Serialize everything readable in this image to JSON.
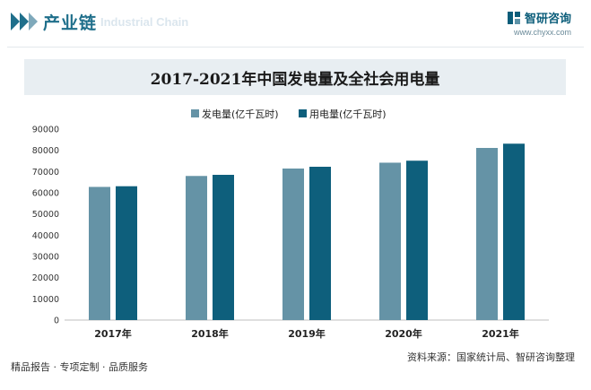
{
  "header": {
    "title": "产业链",
    "ghost_text": "Industrial Chain"
  },
  "brand": {
    "name": "智研咨询",
    "url": "www.chyxx.com"
  },
  "footer": {
    "slogan": "精品报告 · 专项定制 · 品质服务",
    "source": "资料来源：国家统计局、智研咨询整理"
  },
  "colors": {
    "series1": "#6593a6",
    "series2": "#0e5f7c",
    "accent": "#1f6f8b"
  },
  "chart_data": {
    "type": "bar",
    "title": "2017-2021年中国发电量及全社会用电量",
    "categories": [
      "2017年",
      "2018年",
      "2019年",
      "2020年",
      "2021年"
    ],
    "series": [
      {
        "name": "发电量(亿千瓦时)",
        "values": [
          62758,
          67914,
          71422,
          74170,
          81122
        ]
      },
      {
        "name": "用电量(亿千瓦时)",
        "values": [
          63077,
          68449,
          72255,
          75110,
          83128
        ]
      }
    ],
    "ylim": [
      0,
      90000
    ],
    "yticks": [
      0,
      10000,
      20000,
      30000,
      40000,
      50000,
      60000,
      70000,
      80000,
      90000
    ],
    "legend_position": "top-center",
    "grid": false
  }
}
